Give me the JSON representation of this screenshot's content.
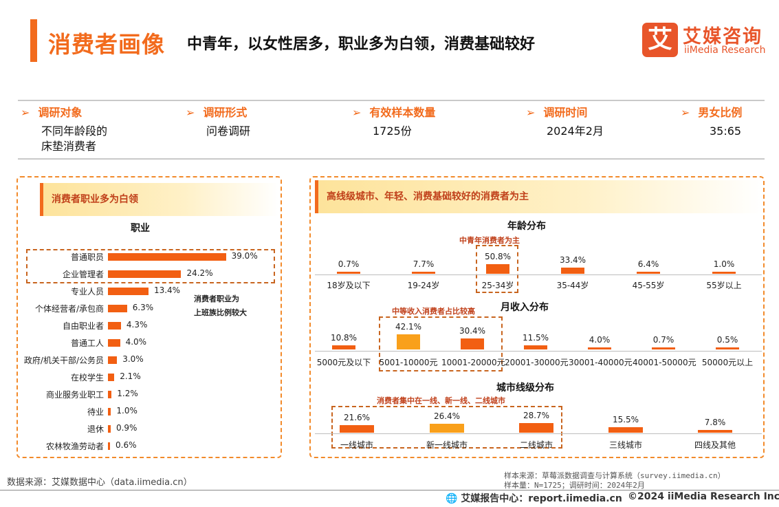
{
  "header": {
    "title_main": "消费者画像",
    "title_sub": "中青年，以女性居多，职业多为白领，消费基础较好",
    "logo_mark": "艾",
    "logo_cn": "艾媒咨询",
    "logo_en": "iiMedia Research"
  },
  "meta": [
    {
      "label": "调研对象",
      "value": "不同年龄段的\n床垫消费者"
    },
    {
      "label": "调研形式",
      "value": "问卷调研"
    },
    {
      "label": "有效样本数量",
      "value": "1725份"
    },
    {
      "label": "调研时间",
      "value": "2024年2月"
    },
    {
      "label": "男女比例",
      "value": "35:65"
    }
  ],
  "left_panel": {
    "header": "消费者职业多为白领",
    "note_line1": "消费者职业为",
    "note_line2": "上班族比例较大"
  },
  "right_panel": {
    "header": "高线级城市、年轻、消费基础较好的消费者为主",
    "age_note": "中青年消费者为主",
    "income_note": "中等收入消费者占比较高",
    "city_note": "消费者集中在一线、新一线、二线城市"
  },
  "colors": {
    "accent": "#f26b1d",
    "bar": "#f25f12",
    "bar_highlight": "#f9a01b",
    "header_text": "#c0401a",
    "divider": "#c9c9c9"
  },
  "chart_data": [
    {
      "type": "bar",
      "orientation": "horizontal",
      "title": "职业",
      "categories": [
        "普通职员",
        "企业管理者",
        "专业人员",
        "个体经营者/承包商",
        "自由职业者",
        "普通工人",
        "政府/机关干部/公务员",
        "在校学生",
        "商业服务业职工",
        "待业",
        "退休",
        "农林牧渔劳动者"
      ],
      "values": [
        39.0,
        24.2,
        13.4,
        6.3,
        4.3,
        4.0,
        3.0,
        2.1,
        1.2,
        1.0,
        0.9,
        0.6
      ],
      "unit": "%"
    },
    {
      "type": "bar",
      "title": "年龄分布",
      "categories": [
        "18岁及以下",
        "19-24岁",
        "25-34岁",
        "35-44岁",
        "45-55岁",
        "55岁以上"
      ],
      "values": [
        0.7,
        7.7,
        50.8,
        33.4,
        6.4,
        1.0
      ],
      "unit": "%"
    },
    {
      "type": "bar",
      "title": "月收入分布",
      "categories": [
        "5000元及以下",
        "5001-10000元",
        "10001-20000元",
        "20001-30000元",
        "30001-40000元",
        "40001-50000元",
        "50000元以上"
      ],
      "values": [
        10.8,
        42.1,
        30.4,
        11.5,
        4.0,
        0.7,
        0.5
      ],
      "unit": "%"
    },
    {
      "type": "bar",
      "title": "城市线级分布",
      "categories": [
        "一线城市",
        "新一线城市",
        "二线城市",
        "三线城市",
        "四线及其他"
      ],
      "values": [
        21.6,
        26.4,
        28.7,
        15.5,
        7.8
      ],
      "unit": "%"
    }
  ],
  "footer": {
    "source": "数据来源：艾媒数据中心（data.iimedia.cn）",
    "sample_source": "样本来源：草莓派数据调查与计算系统（survey.iimedia.cn）",
    "sample_size": "样本量：N=1725；调研时间：2024年2月",
    "report_center": "艾媒报告中心：report.iimedia.cn",
    "copyright": "©2024  iiMedia Research  Inc"
  }
}
